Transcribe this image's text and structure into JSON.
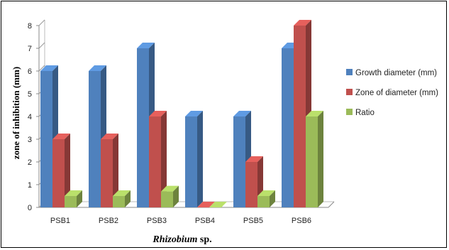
{
  "chart_data": {
    "type": "bar",
    "categories": [
      "PSB1",
      "PSB2",
      "PSB3",
      "PSB4",
      "PSB5",
      "PSB6"
    ],
    "series": [
      {
        "name": "Growth diameter (mm)",
        "values": [
          6,
          6,
          7,
          4,
          4,
          7
        ],
        "color": "#4F81BD"
      },
      {
        "name": "Zone of diameter (mm)",
        "values": [
          3,
          3,
          4,
          0,
          2,
          8
        ],
        "color": "#C0504D"
      },
      {
        "name": "Ratio",
        "values": [
          0.5,
          0.5,
          0.7,
          0,
          0.5,
          4
        ],
        "color": "#9BBB59"
      }
    ],
    "ylabel": "zone of inhibition (mm)",
    "xlabel_italic": "Rhizobium",
    "xlabel_rest": " sp.",
    "ylim": [
      0,
      8
    ],
    "yticks": [
      "0",
      "1",
      "2",
      "3",
      "4",
      "5",
      "6",
      "7",
      "8"
    ],
    "grid": false,
    "legend_position": "right",
    "style": "3d-bars"
  }
}
